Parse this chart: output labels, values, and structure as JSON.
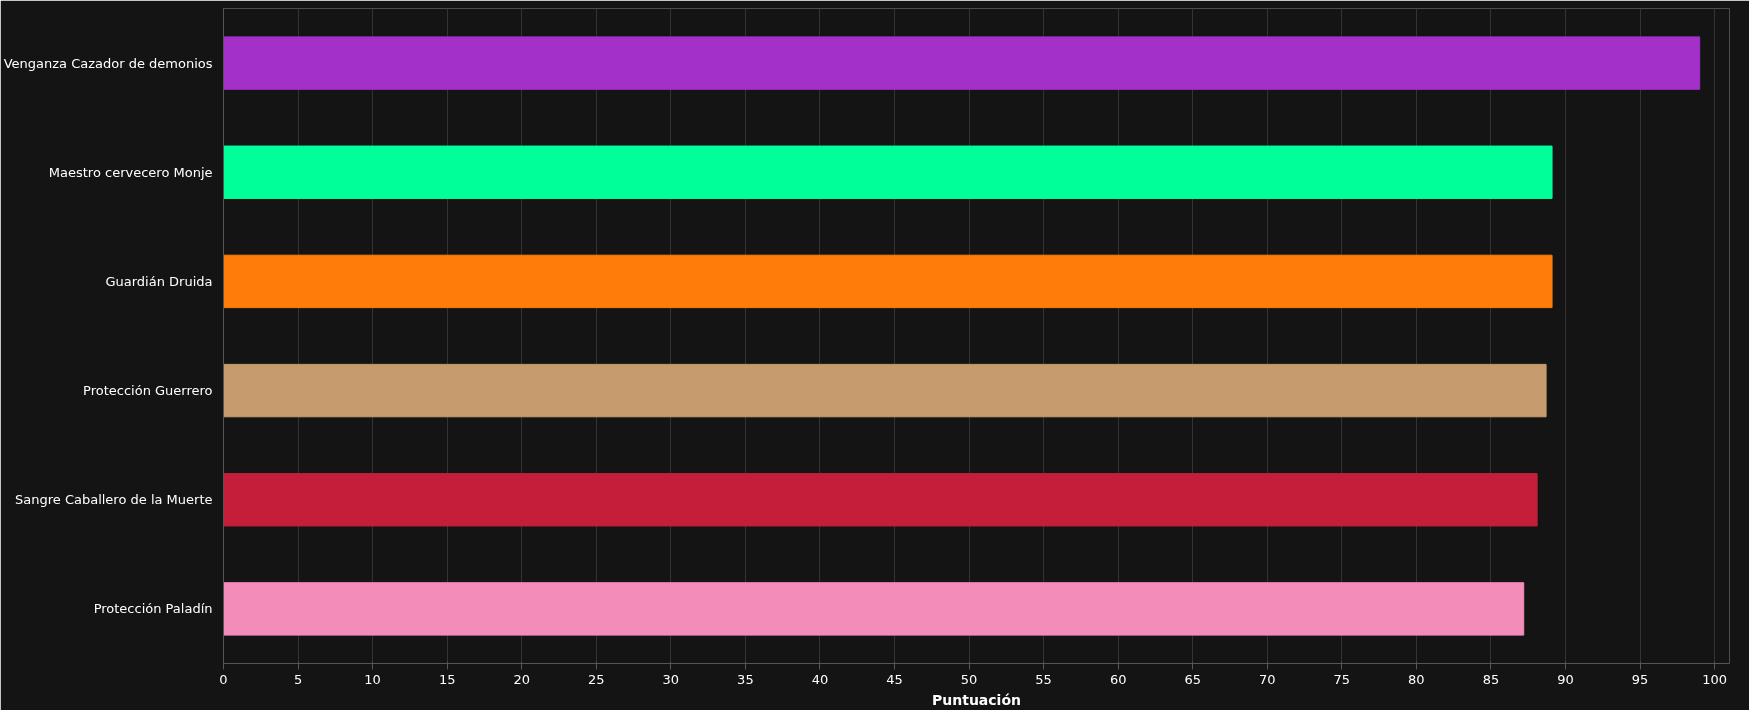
{
  "chart_data": {
    "type": "bar",
    "orientation": "horizontal",
    "xlabel": "Puntuación",
    "categories": [
      "Venganza Cazador de demonios",
      "Maestro cervecero Monje",
      "Guardián Druida",
      "Protección Guerrero",
      "Sangre Caballero de la Muerte",
      "Protección Paladín"
    ],
    "values": [
      99.0,
      89.1,
      89.1,
      88.7,
      88.1,
      87.2
    ],
    "colors": [
      "#a330c9",
      "#00ff98",
      "#ff7c0a",
      "#c69b6d",
      "#c41e3a",
      "#f48cba"
    ],
    "xlim": [
      0,
      101
    ],
    "xticks": [
      0,
      5,
      10,
      15,
      20,
      25,
      30,
      35,
      40,
      45,
      50,
      55,
      60,
      65,
      70,
      75,
      80,
      85,
      90,
      95,
      100
    ],
    "grid": "x"
  }
}
